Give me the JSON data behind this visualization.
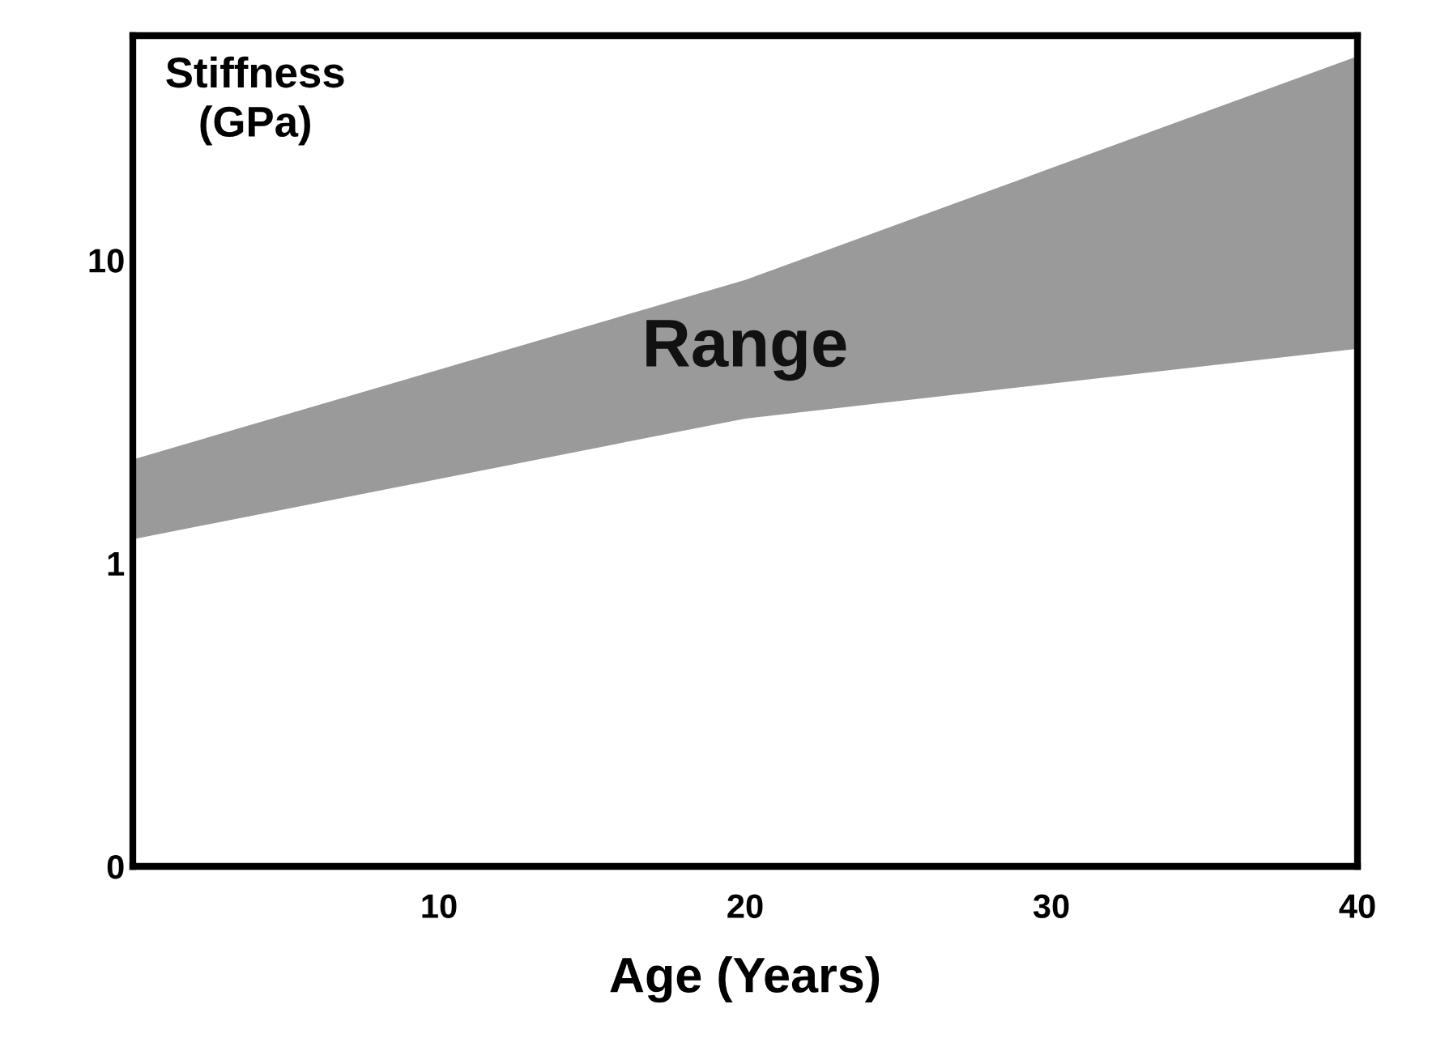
{
  "chart_data": {
    "type": "area",
    "xlabel": "Age (Years)",
    "ylabel": "Stiffness\n(GPa)",
    "series": [
      {
        "color": "#9a9a9a",
        "x": [
          0,
          20,
          40
        ],
        "values": [
          null,
          null,
          null
        ],
        "upper": [
          2.2,
          8.6,
          47
        ],
        "lower": [
          1.2,
          3.0,
          5.1
        ]
      }
    ],
    "xlim": [
      0,
      40
    ],
    "xticks": [
      10,
      20,
      30,
      40
    ],
    "log": "y",
    "ylim": [
      0.1,
      55
    ],
    "yticks": [
      {
        "value": 0.1,
        "label": "0"
      },
      1,
      10
    ],
    "grid": false,
    "legend": false,
    "annotations": [
      "Range"
    ]
  }
}
